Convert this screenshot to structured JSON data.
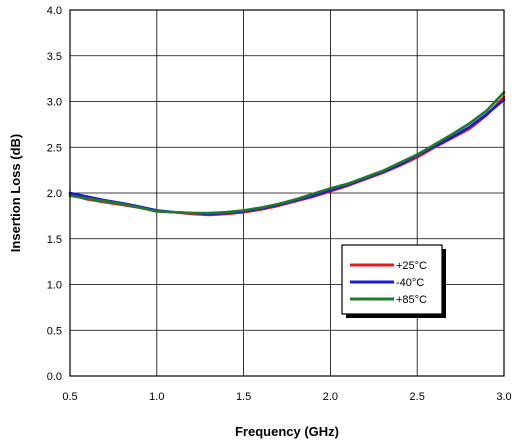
{
  "chart_data": {
    "type": "line",
    "title": "",
    "xlabel": "Frequency (GHz)",
    "ylabel": "Insertion Loss (dB)",
    "xlim": [
      0.5,
      3.0
    ],
    "ylim": [
      0.0,
      4.0
    ],
    "xticks": [
      "0.5",
      "1.0",
      "1.5",
      "2.0",
      "2.5",
      "3.0"
    ],
    "yticks": [
      "0.0",
      "0.5",
      "1.0",
      "1.5",
      "2.0",
      "2.5",
      "3.0",
      "3.5",
      "4.0"
    ],
    "grid": true,
    "legend_position": "right-middle",
    "series": [
      {
        "name": "+25°C",
        "color": "#e41a1c",
        "x": [
          0.5,
          0.6,
          0.7,
          0.8,
          0.9,
          1.0,
          1.1,
          1.2,
          1.3,
          1.4,
          1.5,
          1.6,
          1.7,
          1.8,
          1.9,
          2.0,
          2.1,
          2.2,
          2.3,
          2.4,
          2.5,
          2.6,
          2.7,
          2.8,
          2.9,
          3.0
        ],
        "y": [
          1.98,
          1.93,
          1.9,
          1.87,
          1.84,
          1.8,
          1.79,
          1.77,
          1.76,
          1.77,
          1.79,
          1.82,
          1.86,
          1.91,
          1.96,
          2.02,
          2.08,
          2.15,
          2.22,
          2.3,
          2.39,
          2.5,
          2.6,
          2.7,
          2.85,
          3.05
        ]
      },
      {
        "name": "-40°C",
        "color": "#1a1ad6",
        "x": [
          0.5,
          0.6,
          0.7,
          0.8,
          0.9,
          1.0,
          1.1,
          1.2,
          1.3,
          1.4,
          1.5,
          1.6,
          1.7,
          1.8,
          1.9,
          2.0,
          2.1,
          2.2,
          2.3,
          2.4,
          2.5,
          2.6,
          2.7,
          2.8,
          2.9,
          3.0
        ],
        "y": [
          2.0,
          1.96,
          1.92,
          1.89,
          1.85,
          1.81,
          1.79,
          1.78,
          1.77,
          1.78,
          1.8,
          1.83,
          1.87,
          1.92,
          1.97,
          2.03,
          2.09,
          2.16,
          2.23,
          2.31,
          2.41,
          2.51,
          2.61,
          2.72,
          2.86,
          3.02
        ]
      },
      {
        "name": "+85°C",
        "color": "#1f7a2e",
        "x": [
          0.5,
          0.6,
          0.7,
          0.8,
          0.9,
          1.0,
          1.1,
          1.2,
          1.3,
          1.4,
          1.5,
          1.6,
          1.7,
          1.8,
          1.9,
          2.0,
          2.1,
          2.2,
          2.3,
          2.4,
          2.5,
          2.6,
          2.7,
          2.8,
          2.9,
          3.0
        ],
        "y": [
          1.97,
          1.94,
          1.91,
          1.88,
          1.84,
          1.8,
          1.79,
          1.78,
          1.78,
          1.79,
          1.81,
          1.84,
          1.88,
          1.93,
          1.99,
          2.05,
          2.1,
          2.17,
          2.24,
          2.33,
          2.42,
          2.53,
          2.64,
          2.76,
          2.9,
          3.1
        ]
      }
    ]
  }
}
